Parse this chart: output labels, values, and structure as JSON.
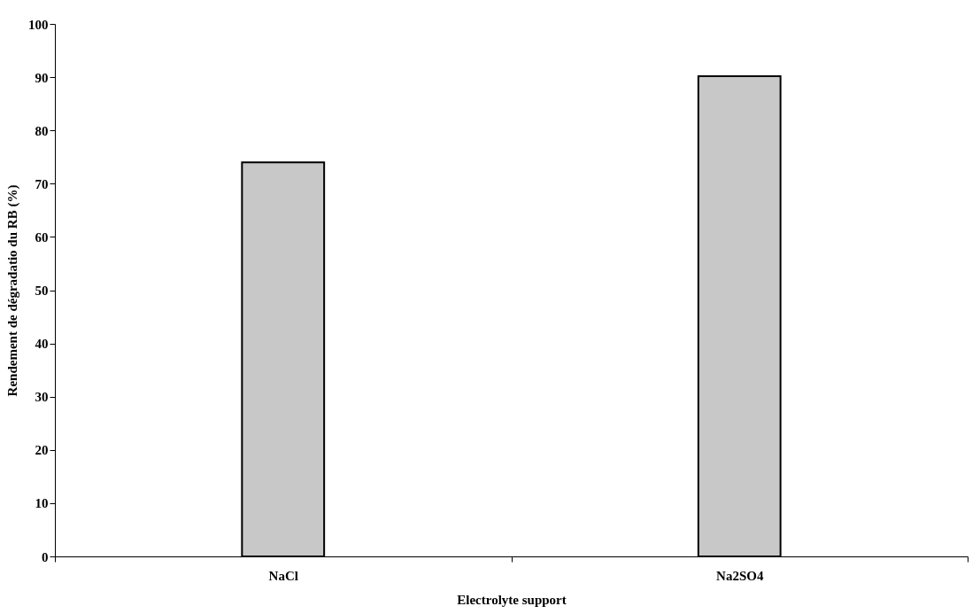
{
  "chart_data": {
    "type": "bar",
    "xlabel": "Electrolyte support",
    "ylabel": "Rendement de dégradatio du RB (%)",
    "categories": [
      "NaCl",
      "Na2SO4"
    ],
    "values": [
      74.0,
      90.2
    ],
    "color": "#c8c8c8",
    "ylim": [
      0,
      100
    ],
    "yticks": [
      0,
      10,
      20,
      30,
      40,
      50,
      60,
      70,
      80,
      90,
      100
    ],
    "grid": false
  }
}
